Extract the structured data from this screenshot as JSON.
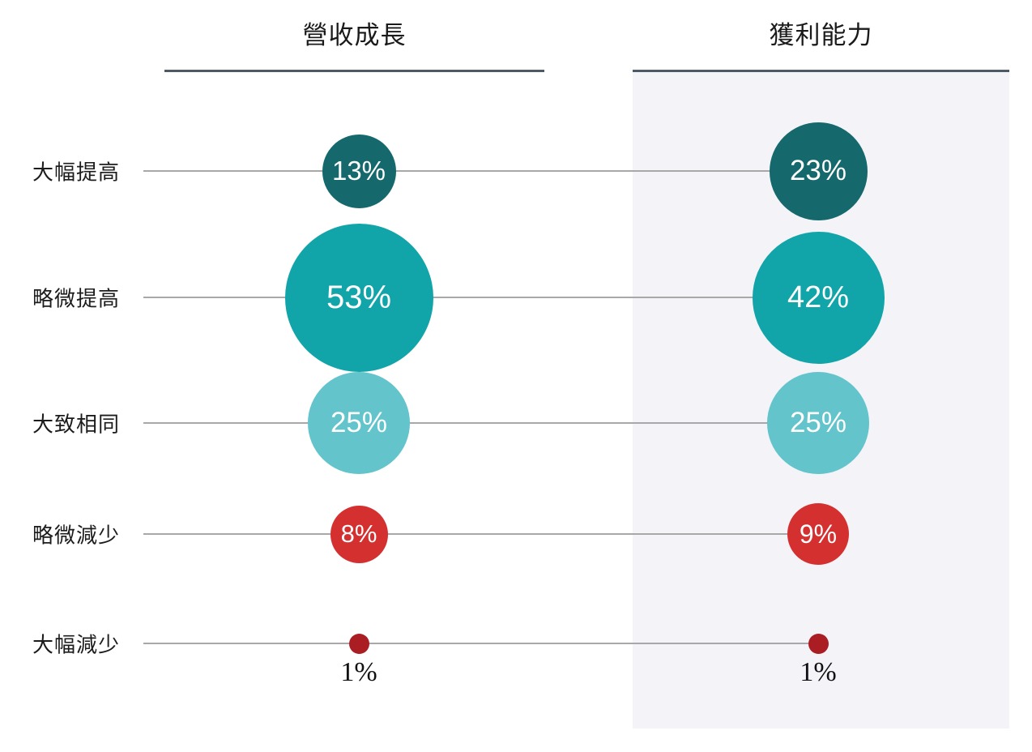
{
  "chart_data": {
    "type": "bubble",
    "title": "",
    "categories": [
      "大幅提高",
      "略微提高",
      "大致相同",
      "略微減少",
      "大幅減少"
    ],
    "series": [
      {
        "name": "營收成長",
        "values": [
          13,
          53,
          25,
          8,
          1
        ],
        "labels": [
          "13%",
          "53%",
          "25%",
          "8%",
          "1%"
        ],
        "highlighted": false
      },
      {
        "name": "獲利能力",
        "values": [
          23,
          42,
          25,
          9,
          1
        ],
        "labels": [
          "23%",
          "42%",
          "25%",
          "9%",
          "1%"
        ],
        "highlighted": true
      }
    ],
    "row_colors": [
      "#15696c",
      "#11a4a9",
      "#63c4cc",
      "#d43030",
      "#a91d23"
    ],
    "value_label_color_inside": "#ffffff",
    "value_label_color_outside": "#111111",
    "outside_label_threshold": 2,
    "layout": {
      "legend": "none",
      "grid": "row-connector-lines",
      "bubble_scale": "area-proportional",
      "connector_color": "#a8a8a8",
      "header_rule_color": "#4d5a66",
      "highlight_panel_color": "#f3f3f8",
      "background": "#ffffff",
      "label_color": "#1c1c1c"
    }
  }
}
